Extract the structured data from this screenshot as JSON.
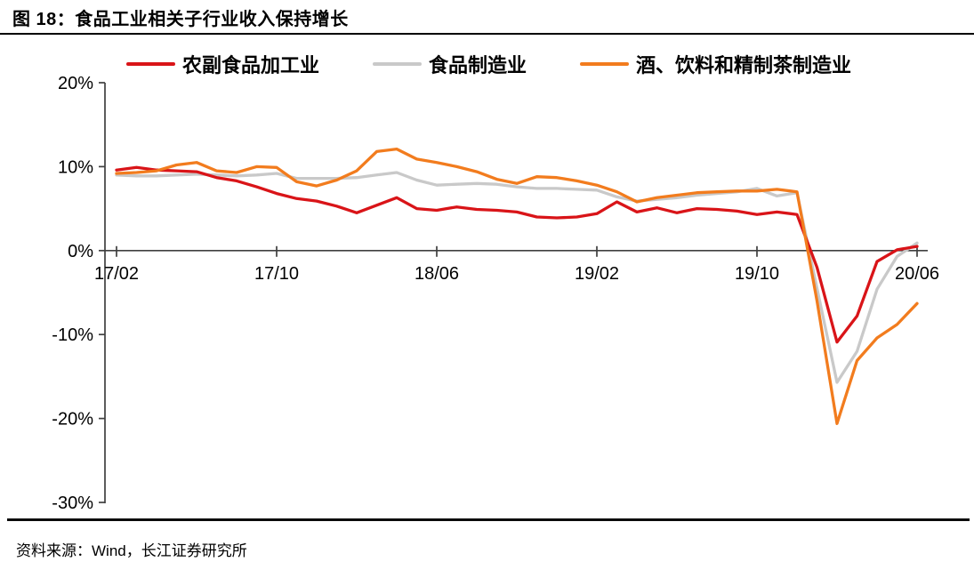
{
  "figure": {
    "title": "图 18：食品工业相关子行业收入保持增长",
    "source": "资料来源：Wind，长江证券研究所"
  },
  "colors": {
    "red": "#D91418",
    "gray": "#C9C9C9",
    "orange": "#F27C1E",
    "axis": "#404040",
    "text": "#000000"
  },
  "chart_data": {
    "type": "line",
    "title": "食品工业相关子行业收入保持增长",
    "grid": false,
    "legend_position": "top",
    "ylim": [
      -30,
      20
    ],
    "y_ticks": [
      20,
      10,
      0,
      -10,
      -20,
      -30
    ],
    "y_tick_labels": [
      "20%",
      "10%",
      "0%",
      "-10%",
      "-20%",
      "-30%"
    ],
    "x_tick_labels": [
      "17/02",
      "17/10",
      "18/06",
      "19/02",
      "19/10",
      "20/06"
    ],
    "x": [
      "17/02",
      "17/03",
      "17/04",
      "17/05",
      "17/06",
      "17/07",
      "17/08",
      "17/09",
      "17/10",
      "17/11",
      "17/12",
      "18/01",
      "18/02",
      "18/03",
      "18/04",
      "18/05",
      "18/06",
      "18/07",
      "18/08",
      "18/09",
      "18/10",
      "18/11",
      "18/12",
      "19/01",
      "19/02",
      "19/03",
      "19/04",
      "19/05",
      "19/06",
      "19/07",
      "19/08",
      "19/09",
      "19/10",
      "19/11",
      "19/12",
      "20/01",
      "20/02",
      "20/03",
      "20/04",
      "20/05",
      "20/06"
    ],
    "unit": "%",
    "series": [
      {
        "name": "农副食品加工业",
        "color_key": "red",
        "values": [
          9.6,
          9.9,
          9.6,
          9.5,
          9.4,
          8.7,
          8.3,
          7.6,
          6.8,
          6.2,
          5.9,
          5.3,
          4.5,
          5.4,
          6.3,
          5.0,
          4.8,
          5.2,
          4.9,
          4.8,
          4.6,
          4.0,
          3.9,
          4.0,
          4.4,
          5.8,
          4.6,
          5.1,
          4.5,
          5.0,
          4.9,
          4.7,
          4.3,
          4.6,
          4.3,
          -2.0,
          -10.9,
          -7.8,
          -1.3,
          0.1,
          0.5
        ]
      },
      {
        "name": "食品制造业",
        "color_key": "gray",
        "values": [
          9.0,
          8.9,
          8.9,
          9.0,
          9.1,
          9.0,
          8.9,
          9.0,
          9.2,
          8.6,
          8.6,
          8.6,
          8.7,
          9.0,
          9.3,
          8.4,
          7.8,
          7.9,
          8.0,
          7.9,
          7.6,
          7.4,
          7.4,
          7.3,
          7.2,
          6.4,
          5.9,
          6.1,
          6.3,
          6.6,
          6.8,
          7.0,
          7.4,
          6.5,
          6.9,
          -4.5,
          -15.7,
          -12.0,
          -4.6,
          -0.7,
          0.9
        ]
      },
      {
        "name": "酒、饮料和精制茶制造业",
        "color_key": "orange",
        "values": [
          9.2,
          9.3,
          9.5,
          10.2,
          10.5,
          9.5,
          9.3,
          10.0,
          9.9,
          8.2,
          7.7,
          8.4,
          9.5,
          11.8,
          12.1,
          10.9,
          10.5,
          10.0,
          9.4,
          8.5,
          8.0,
          8.8,
          8.7,
          8.3,
          7.8,
          7.0,
          5.8,
          6.3,
          6.6,
          6.9,
          7.0,
          7.1,
          7.1,
          7.3,
          7.0,
          -6.0,
          -20.6,
          -13.1,
          -10.4,
          -8.8,
          -6.3
        ]
      }
    ]
  }
}
